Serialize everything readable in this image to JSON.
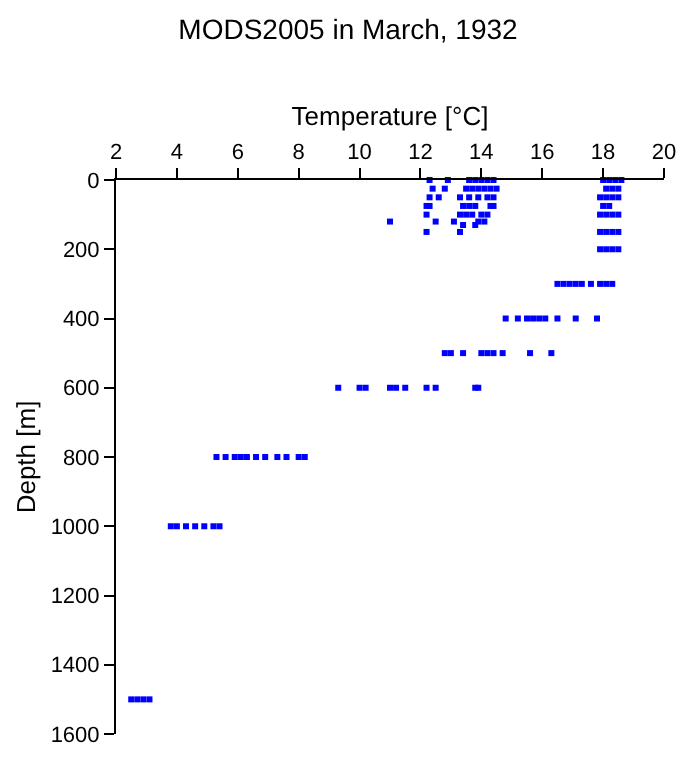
{
  "chart_data": {
    "type": "scatter",
    "title": "MODS2005 in March, 1932",
    "xlabel": "Temperature [°C]",
    "ylabel": "Depth [m]",
    "xlim": [
      2,
      20
    ],
    "xticks": [
      2,
      4,
      6,
      8,
      10,
      12,
      14,
      16,
      18,
      20
    ],
    "ylim": [
      1600,
      0
    ],
    "yticks": [
      0,
      200,
      400,
      600,
      800,
      1000,
      1200,
      1400,
      1600
    ],
    "marker": "square",
    "series": [
      {
        "color": "#0000ff",
        "x": [
          12.3,
          12.9,
          13.6,
          13.8,
          14.0,
          14.2,
          14.4,
          18.0,
          18.2,
          18.4,
          18.6,
          12.4,
          12.8,
          13.5,
          13.7,
          13.9,
          14.1,
          14.3,
          14.5,
          18.1,
          18.3,
          18.5,
          12.3,
          12.6,
          13.3,
          13.6,
          13.9,
          14.2,
          14.4,
          17.9,
          18.1,
          18.3,
          18.5,
          12.2,
          12.3,
          13.4,
          13.6,
          13.8,
          14.3,
          14.4,
          18.0,
          18.2,
          12.2,
          13.3,
          13.5,
          13.7,
          14.0,
          14.2,
          17.9,
          18.1,
          18.3,
          18.5,
          11.0,
          12.5,
          13.1,
          13.9,
          14.1,
          13.4,
          13.8,
          12.2,
          13.3,
          17.9,
          18.1,
          18.3,
          18.5,
          17.9,
          18.1,
          18.3,
          18.5,
          16.5,
          16.7,
          16.9,
          17.1,
          17.3,
          17.6,
          17.9,
          18.1,
          18.3,
          14.8,
          15.2,
          15.5,
          15.7,
          15.9,
          16.1,
          16.5,
          17.1,
          17.8,
          12.8,
          13.0,
          13.4,
          14.0,
          14.2,
          14.4,
          14.7,
          15.6,
          16.3,
          9.3,
          10.0,
          10.2,
          11.0,
          11.2,
          11.5,
          12.2,
          12.5,
          13.8,
          13.9,
          5.3,
          5.6,
          5.9,
          6.1,
          6.3,
          6.6,
          6.9,
          7.3,
          7.6,
          8.0,
          8.2,
          3.8,
          4.0,
          4.3,
          4.6,
          4.9,
          5.2,
          5.4,
          2.5,
          2.7,
          2.9,
          3.1
        ],
        "values": [
          0,
          0,
          0,
          0,
          0,
          0,
          0,
          0,
          0,
          0,
          0,
          25,
          25,
          25,
          25,
          25,
          25,
          25,
          25,
          25,
          25,
          25,
          50,
          50,
          50,
          50,
          50,
          50,
          50,
          50,
          50,
          50,
          50,
          75,
          75,
          75,
          75,
          75,
          75,
          75,
          75,
          75,
          100,
          100,
          100,
          100,
          100,
          100,
          100,
          100,
          100,
          100,
          120,
          120,
          120,
          120,
          120,
          130,
          130,
          150,
          150,
          150,
          150,
          150,
          150,
          200,
          200,
          200,
          200,
          300,
          300,
          300,
          300,
          300,
          300,
          300,
          300,
          300,
          400,
          400,
          400,
          400,
          400,
          400,
          400,
          400,
          400,
          500,
          500,
          500,
          500,
          500,
          500,
          500,
          500,
          500,
          600,
          600,
          600,
          600,
          600,
          600,
          600,
          600,
          600,
          600,
          800,
          800,
          800,
          800,
          800,
          800,
          800,
          800,
          800,
          800,
          800,
          1000,
          1000,
          1000,
          1000,
          1000,
          1000,
          1000,
          1500,
          1500,
          1500,
          1500
        ]
      }
    ]
  }
}
